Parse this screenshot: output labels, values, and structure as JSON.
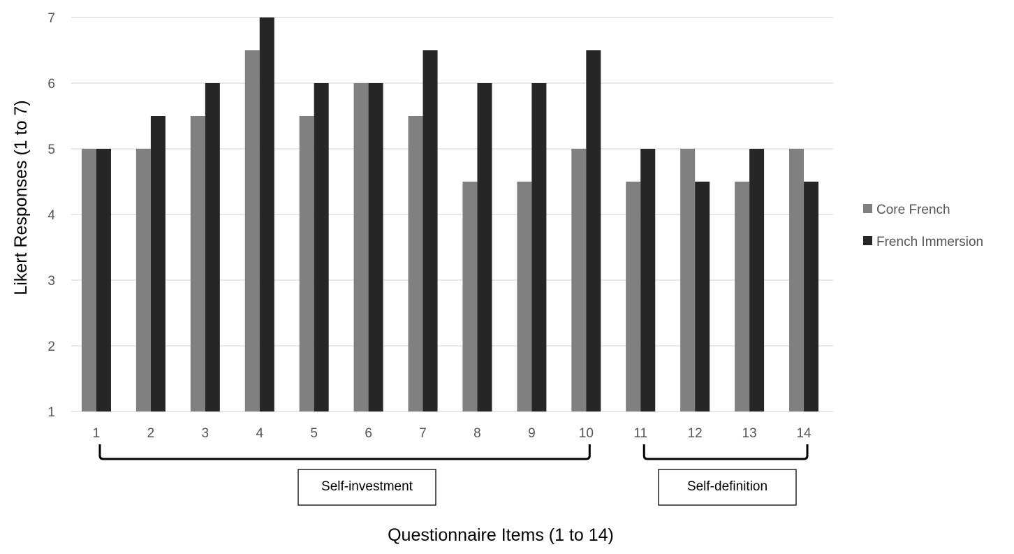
{
  "chart_data": {
    "type": "bar",
    "categories": [
      "1",
      "2",
      "3",
      "4",
      "5",
      "6",
      "7",
      "8",
      "9",
      "10",
      "11",
      "12",
      "13",
      "14"
    ],
    "series": [
      {
        "name": "Core French",
        "color": "#808080",
        "values": [
          5,
          5,
          5.5,
          6.5,
          5.5,
          6,
          5.5,
          4.5,
          4.5,
          5,
          4.5,
          5,
          4.5,
          5
        ]
      },
      {
        "name": "French Immersion",
        "color": "#262626",
        "values": [
          5,
          5.5,
          6,
          7,
          6,
          6,
          6.5,
          6,
          6,
          6.5,
          5,
          4.5,
          5,
          4.5
        ]
      }
    ],
    "ylim": [
      1,
      7
    ],
    "yticks": [
      "1",
      "2",
      "3",
      "4",
      "5",
      "6",
      "7"
    ],
    "xlabel": "Questionnaire Items (1 to 14)",
    "ylabel": "Likert Responses (1 to 7)",
    "grid": true,
    "legend_position": "right",
    "groups": [
      {
        "label": "Self-investment",
        "from": "1",
        "to": "10"
      },
      {
        "label": "Self-definition",
        "from": "11",
        "to": "14"
      }
    ]
  }
}
